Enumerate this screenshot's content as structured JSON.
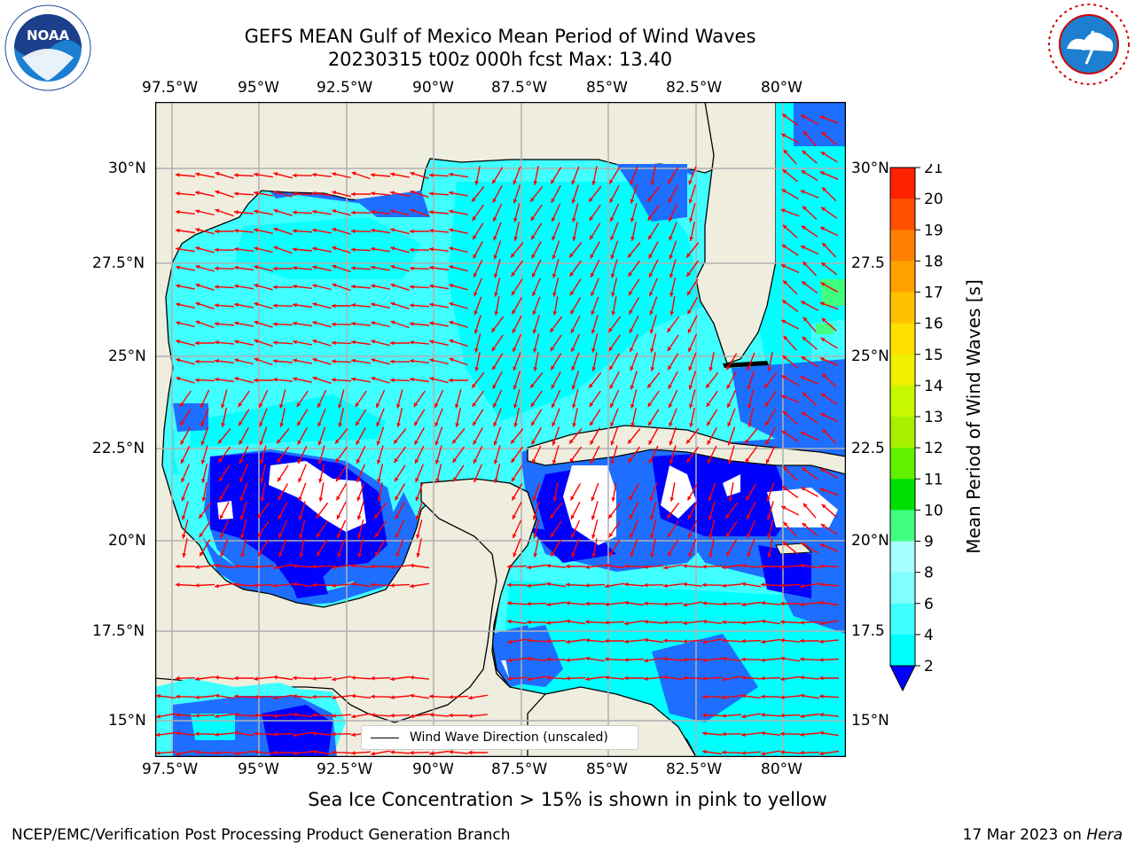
{
  "title_line1": "GEFS MEAN Gulf of Mexico Mean Period of Wind Waves",
  "title_line2": "20230315 t00z 000h fcst   Max: 13.40",
  "lon_labels": [
    "97.5°W",
    "95°W",
    "92.5°W",
    "90°W",
    "87.5°W",
    "85°W",
    "82.5°W",
    "80°W"
  ],
  "lat_labels": [
    "30°N",
    "27.5°N",
    "25°N",
    "22.5°N",
    "20°N",
    "17.5°N",
    "15°N"
  ],
  "lat_labels_right": [
    "30°N",
    "27.5",
    "25°N",
    "22.5",
    "20°N",
    "17.5",
    "15°N"
  ],
  "legend_label": "Wind Wave Direction (unscaled)",
  "colorbar": {
    "label": "Mean Period of Wind Waves [s]",
    "ticks": [
      "2",
      "4",
      "6",
      "8",
      "9",
      "10",
      "11",
      "12",
      "13",
      "14",
      "15",
      "16",
      "17",
      "18",
      "19",
      "20",
      "21"
    ],
    "colors": [
      "#1e6eff",
      "#00ffff",
      "#40ffff",
      "#80ffff",
      "#a8ffff",
      "#40ff80",
      "#00e000",
      "#60f000",
      "#a8f000",
      "#c8f800",
      "#f0f000",
      "#ffe000",
      "#ffc000",
      "#ffa000",
      "#ff8000",
      "#ff5000",
      "#ff2000",
      "#ff0000"
    ],
    "extend_color": "#0000ff"
  },
  "note": "Sea Ice Concentration > 15% is shown in pink to yellow",
  "footer_left": "NCEP/EMC/Verification Post Processing Product Generation Branch",
  "footer_right_date": "17 Mar 2023 on",
  "footer_right_machine": "Hera",
  "map_colors": {
    "land": "#efedde",
    "ocean_light": "#40ffff",
    "ocean_cyan": "#00ffff",
    "ocean_blue": "#1e6eff",
    "ocean_dark": "#0000ff",
    "arrow": "#ff0000",
    "grid": "#b0b0b0"
  }
}
